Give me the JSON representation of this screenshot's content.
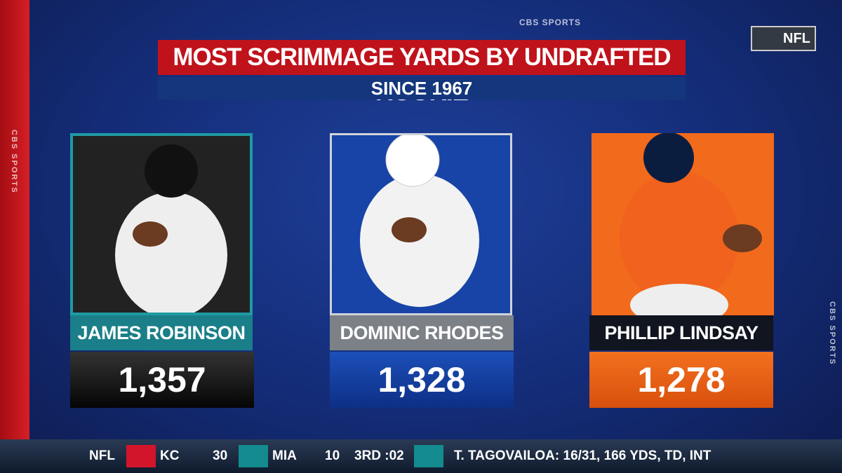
{
  "header": {
    "brand": "CBS SPORTS",
    "network": "NFL",
    "title": "MOST SCRIMMAGE YARDS BY UNDRAFTED ROOKIE",
    "subtitle": "SINCE 1967",
    "side_left": "CBS SPORTS",
    "side_right": "CBS SPORTS"
  },
  "players": [
    {
      "name": "JAMES ROBINSON",
      "yards": "1,357"
    },
    {
      "name": "DOMINIC RHODES",
      "yards": "1,328"
    },
    {
      "name": "PHILLIP LINDSAY",
      "yards": "1,278"
    }
  ],
  "ticker": {
    "league": "NFL",
    "away": "KC",
    "away_score": "30",
    "home": "MIA",
    "home_score": "10",
    "clock": "3RD :02",
    "stat": "T. TAGOVAILOA: 16/31, 166 YDS, TD, INT"
  }
}
